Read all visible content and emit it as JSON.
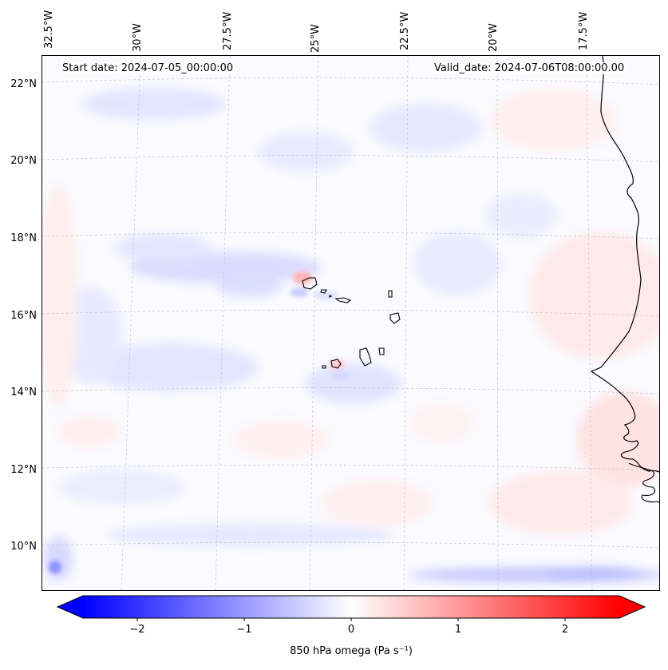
{
  "header": {
    "start_date": "Start date: 2024-07-05_00:00:00",
    "valid_date": "Valid_date: 2024-07-06T08:00:00.00"
  },
  "axes": {
    "lon_ticks": [
      "32.5°W",
      "30°W",
      "27.5°W",
      "25°W",
      "22.5°W",
      "20°W",
      "17.5°W"
    ],
    "lat_ticks": [
      "22°N",
      "20°N",
      "18°N",
      "16°N",
      "14°N",
      "12°N",
      "10°N"
    ]
  },
  "colorbar": {
    "tick_labels": [
      "−2",
      "−1",
      "0",
      "1",
      "2"
    ],
    "label": "850 hPa omega (Pa s⁻¹)",
    "min_color": "#0000ff",
    "mid_color": "#ffffff",
    "max_color": "#ff0000"
  },
  "map": {
    "field": "850 hPa omega",
    "features": [
      "coastline-west-africa",
      "cape-verde-islands"
    ]
  }
}
